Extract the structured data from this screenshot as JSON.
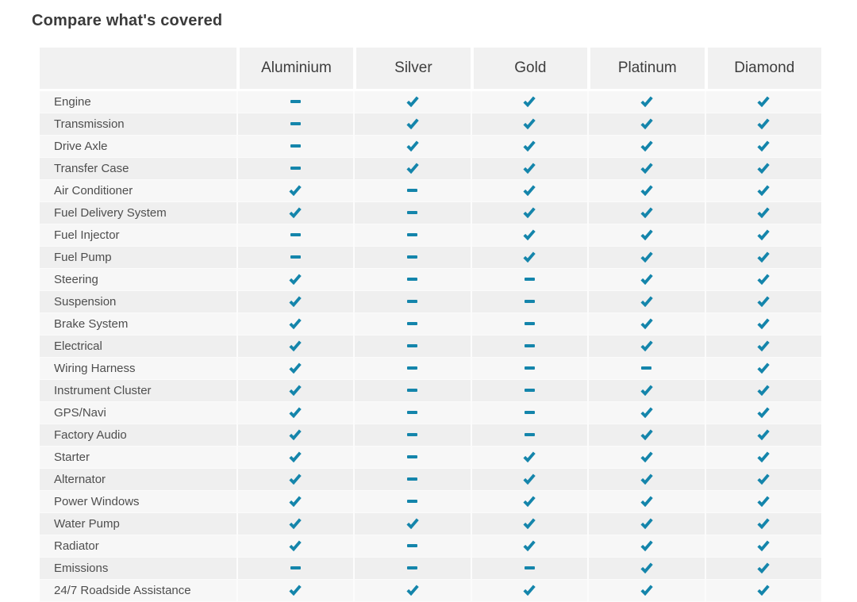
{
  "title": "Compare what's covered",
  "colors": {
    "accent_teal": "#1485ab",
    "header_bg": "#f1f1f1",
    "row_light": "#f7f7f7",
    "row_dark": "#efefef",
    "title_text": "#3b3b3b",
    "header_text": "#3d3d3d",
    "label_text": "#4e4e4e"
  },
  "icons": {
    "covered": "check-icon",
    "not_covered": "dash-icon"
  },
  "chart_data": {
    "type": "table",
    "title": "Compare what's covered",
    "columns": [
      "",
      "Aluminium",
      "Silver",
      "Gold",
      "Platinum",
      "Diamond"
    ],
    "legend": {
      "check": "covered",
      "dash": "not covered"
    },
    "rows": [
      {
        "label": "Engine",
        "values": [
          "dash",
          "check",
          "check",
          "check",
          "check"
        ]
      },
      {
        "label": "Transmission",
        "values": [
          "dash",
          "check",
          "check",
          "check",
          "check"
        ]
      },
      {
        "label": "Drive Axle",
        "values": [
          "dash",
          "check",
          "check",
          "check",
          "check"
        ]
      },
      {
        "label": "Transfer Case",
        "values": [
          "dash",
          "check",
          "check",
          "check",
          "check"
        ]
      },
      {
        "label": "Air Conditioner",
        "values": [
          "check",
          "dash",
          "check",
          "check",
          "check"
        ]
      },
      {
        "label": "Fuel Delivery System",
        "values": [
          "check",
          "dash",
          "check",
          "check",
          "check"
        ]
      },
      {
        "label": "Fuel Injector",
        "values": [
          "dash",
          "dash",
          "check",
          "check",
          "check"
        ]
      },
      {
        "label": "Fuel Pump",
        "values": [
          "dash",
          "dash",
          "check",
          "check",
          "check"
        ]
      },
      {
        "label": "Steering",
        "values": [
          "check",
          "dash",
          "dash",
          "check",
          "check"
        ]
      },
      {
        "label": "Suspension",
        "values": [
          "check",
          "dash",
          "dash",
          "check",
          "check"
        ]
      },
      {
        "label": "Brake System",
        "values": [
          "check",
          "dash",
          "dash",
          "check",
          "check"
        ]
      },
      {
        "label": "Electrical",
        "values": [
          "check",
          "dash",
          "dash",
          "check",
          "check"
        ]
      },
      {
        "label": "Wiring Harness",
        "values": [
          "check",
          "dash",
          "dash",
          "dash",
          "check"
        ]
      },
      {
        "label": "Instrument Cluster",
        "values": [
          "check",
          "dash",
          "dash",
          "check",
          "check"
        ]
      },
      {
        "label": "GPS/Navi",
        "values": [
          "check",
          "dash",
          "dash",
          "check",
          "check"
        ]
      },
      {
        "label": "Factory Audio",
        "values": [
          "check",
          "dash",
          "dash",
          "check",
          "check"
        ]
      },
      {
        "label": "Starter",
        "values": [
          "check",
          "dash",
          "check",
          "check",
          "check"
        ]
      },
      {
        "label": "Alternator",
        "values": [
          "check",
          "dash",
          "check",
          "check",
          "check"
        ]
      },
      {
        "label": "Power Windows",
        "values": [
          "check",
          "dash",
          "check",
          "check",
          "check"
        ]
      },
      {
        "label": "Water Pump",
        "values": [
          "check",
          "check",
          "check",
          "check",
          "check"
        ]
      },
      {
        "label": "Radiator",
        "values": [
          "check",
          "dash",
          "check",
          "check",
          "check"
        ]
      },
      {
        "label": "Emissions",
        "values": [
          "dash",
          "dash",
          "dash",
          "check",
          "check"
        ]
      },
      {
        "label": "24/7 Roadside Assistance",
        "values": [
          "check",
          "check",
          "check",
          "check",
          "check"
        ]
      }
    ]
  }
}
